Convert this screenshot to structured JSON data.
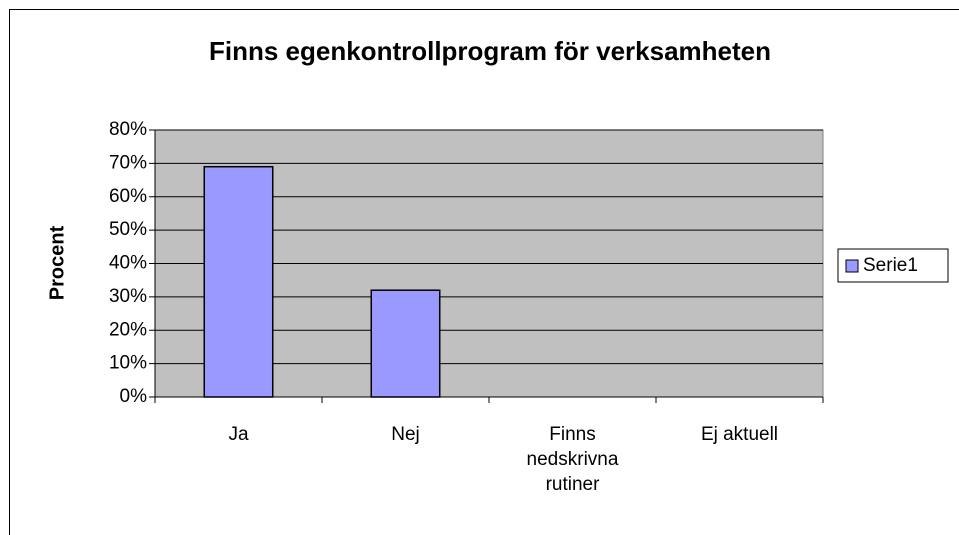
{
  "chart_data": {
    "type": "bar",
    "title": "Finns egenkontrollprogram för verksamheten",
    "y_label": "Procent",
    "categories": [
      "Ja",
      "Nej",
      "Finns nedskrivna rutiner",
      "Ej aktuell"
    ],
    "series": [
      {
        "name": "Serie1",
        "color": "#9999ff",
        "values": [
          69,
          32,
          0,
          0
        ]
      }
    ],
    "ylim": [
      0,
      80
    ],
    "yticks": [
      {
        "value": 0,
        "label": "0%"
      },
      {
        "value": 10,
        "label": "10%"
      },
      {
        "value": 20,
        "label": "20%"
      },
      {
        "value": 30,
        "label": "30%"
      },
      {
        "value": 40,
        "label": "40%"
      },
      {
        "value": 50,
        "label": "50%"
      },
      {
        "value": 60,
        "label": "60%"
      },
      {
        "value": 70,
        "label": "70%"
      },
      {
        "value": 80,
        "label": "80%"
      }
    ],
    "grid": true,
    "legend": "right"
  }
}
